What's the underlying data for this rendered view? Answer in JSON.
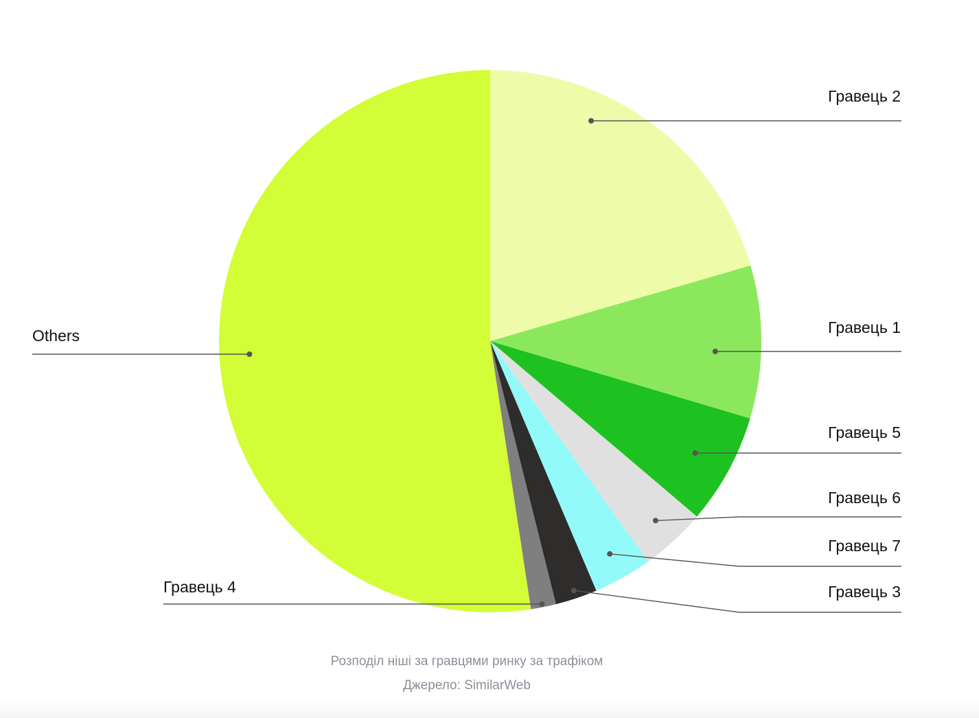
{
  "chart_data": {
    "type": "pie",
    "start_angle_deg": 0,
    "direction": "clockwise",
    "slices": [
      {
        "label": "Гравець 2",
        "value": 20.5,
        "color": "#eefca9"
      },
      {
        "label": "Гравець 1",
        "value": 9.1,
        "color": "#8be85d"
      },
      {
        "label": "Гравець 5",
        "value": 6.6,
        "color": "#1ec220"
      },
      {
        "label": "Гравець 6",
        "value": 3.9,
        "color": "#e0e0e0"
      },
      {
        "label": "Гравець 7",
        "value": 3.5,
        "color": "#93fafa"
      },
      {
        "label": "Гравець 3",
        "value": 2.5,
        "color": "#2f2c2c"
      },
      {
        "label": "Гравець 4",
        "value": 1.5,
        "color": "#7f7f7f"
      },
      {
        "label": "Others",
        "value": 52.4,
        "color": "#d3fd36"
      }
    ]
  },
  "caption": {
    "description": "Розподіл ніші за гравцями ринку за трафіком",
    "source": "Джерело: SimilarWeb"
  }
}
